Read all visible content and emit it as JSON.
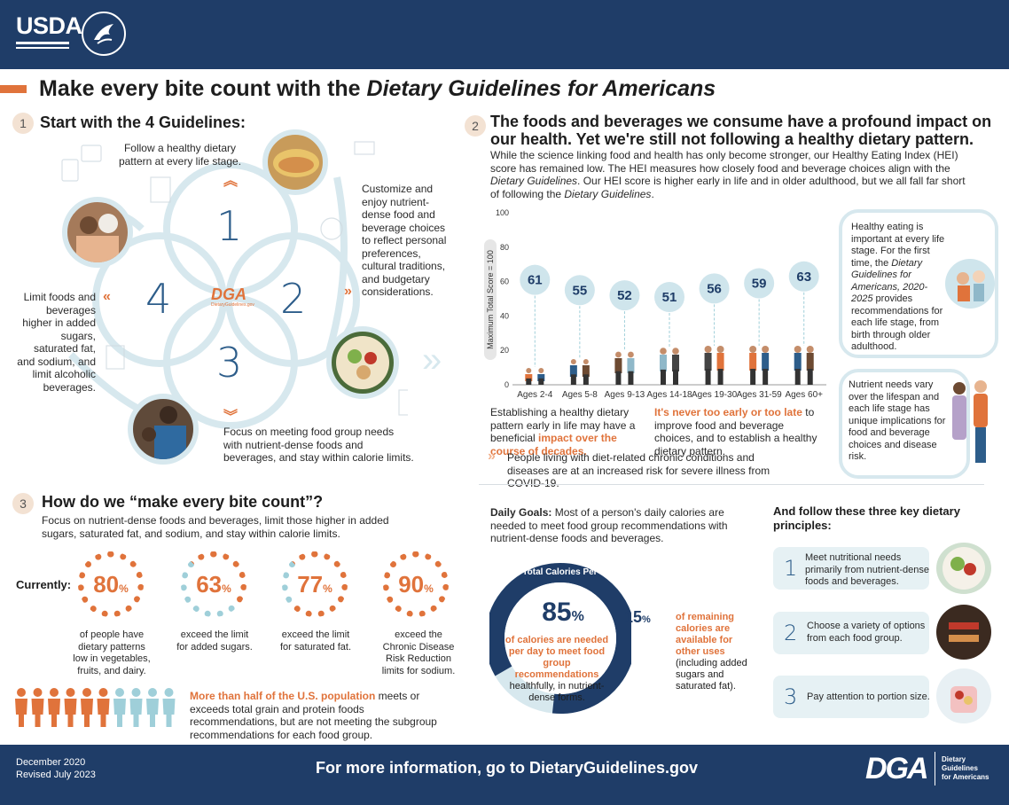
{
  "header": {
    "usda_label": "USDA"
  },
  "title": {
    "prefix": "Make every bite count with the ",
    "italic": "Dietary Guidelines for Americans"
  },
  "section1": {
    "number": "1",
    "title": "Start with the 4 Guidelines:",
    "guideline1": "Follow a healthy dietary pattern at every life stage.",
    "guideline2": "Customize and enjoy nutrient-dense food and beverage choices to reflect personal preferences, cultural traditions, and budgetary considerations.",
    "guideline3": "Focus on meeting food group needs with nutrient-dense foods and beverages, and stay within calorie limits.",
    "guideline4": "Limit foods and beverages higher in added sugars, saturated fat, and sodium, and limit alcoholic beverages.",
    "numerals": [
      "1",
      "2",
      "3",
      "4"
    ],
    "center_logo": "DGA",
    "center_url": "DietaryGuidelines.gov"
  },
  "section2": {
    "number": "2",
    "title": "The foods and beverages we consume have a profound impact on our health. Yet we're still not following a healthy dietary pattern.",
    "intro_1": "While the science linking food and health has only become stronger, our Healthy Eating Index (HEI) score has remained low. The HEI measures how closely food and beverage choices align with the ",
    "intro_italic_1": "Dietary Guidelines",
    "intro_2": ". Our HEI score is higher early in life and in older adulthood, but we all fall far short of following the ",
    "intro_italic_2": "Dietary Guidelines",
    "intro_3": ".",
    "early_1": "Establishing a healthy dietary pattern early in life may have a beneficial ",
    "early_hl": "impact over the course of decades.",
    "never_hl": "It's never too early or too late",
    "never_2": " to improve food and beverage choices, and to establish a healthy dietary pattern.",
    "covid": "People living with diet-related chronic conditions and diseases are at an increased risk for severe illness from COVID-19.",
    "side1_a": "Healthy eating is important at every life stage. For the first time, the ",
    "side1_italic": "Dietary Guidelines for Americans, 2020-2025",
    "side1_b": " provides recommendations for each life stage, from birth through older adulthood.",
    "side2": "Nutrient needs vary over the lifespan and each life stage has unique implications for food and beverage choices and disease risk."
  },
  "chart_data": {
    "type": "bar",
    "ylabel": "Maximum Total Score = 100",
    "ylim": [
      0,
      100
    ],
    "yticks": [
      "0",
      "20",
      "40",
      "60",
      "80",
      "100"
    ],
    "categories": [
      "Ages 2-4",
      "Ages 5-8",
      "Ages 9-13",
      "Ages 14-18",
      "Ages 19-30",
      "Ages 31-59",
      "Ages 60+"
    ],
    "values": [
      61,
      55,
      52,
      51,
      56,
      59,
      63
    ],
    "labels": [
      "61",
      "55",
      "52",
      "51",
      "56",
      "59",
      "63"
    ]
  },
  "section3": {
    "number": "3",
    "title": "How do we “make every bite count”?",
    "intro": "Focus on nutrient-dense foods and beverages, limit those higher in added sugars, saturated fat, and sodium, and stay within calorie limits.",
    "currently": "Currently:",
    "stats": [
      {
        "value": "80",
        "unit": "%",
        "caption": "of people have dietary patterns low in vegetables, fruits, and dairy."
      },
      {
        "value": "63",
        "unit": "%",
        "caption": "exceed the limit for added sugars."
      },
      {
        "value": "77",
        "unit": "%",
        "caption": "exceed the limit for saturated fat."
      },
      {
        "value": "90",
        "unit": "%",
        "caption": "exceed the Chronic Disease Risk Reduction limits for sodium."
      }
    ],
    "population_hl": "More than half of the U.S. population",
    "population_rest": " meets or exceeds total grain and protein foods recommendations, but are not meeting the subgroup recommendations for each food group."
  },
  "daily": {
    "goals_label": "Daily Goals:",
    "goals_text": " Most of a person's daily calories are needed to meet food group recommendations with nutrient-dense foods and beverages.",
    "ring_title": "Total Calories Per Day",
    "main_value": "85",
    "main_unit": "%",
    "main_hl": "of calories are needed per day to meet food group recommendations",
    "main_rest": "healthfully, in nutrient-dense forms.",
    "side_value": "15",
    "side_unit": "%",
    "side_hl": "of remaining calories are available for other uses",
    "side_rest": "(including added sugars and saturated fat).",
    "share_main": 0.85
  },
  "principles": {
    "title": "And follow these three key dietary principles:",
    "items": [
      {
        "num": "1",
        "text": "Meet nutritional needs primarily from nutrient-dense foods and beverages."
      },
      {
        "num": "2",
        "text": "Choose a variety of options from each food group."
      },
      {
        "num": "3",
        "text": "Pay attention to portion size."
      }
    ]
  },
  "footer": {
    "date1": "December 2020",
    "date2": "Revised July 2023",
    "cta": "For more information, go to DietaryGuidelines.gov",
    "logo": "DGA",
    "logo_line1": "Dietary",
    "logo_line2": "Guidelines",
    "logo_line3": "for Americans"
  },
  "colors": {
    "navy": "#1f3d68",
    "orange": "#e0733b",
    "lightblue": "#d7e8ee",
    "teal": "#9fcfd9"
  }
}
